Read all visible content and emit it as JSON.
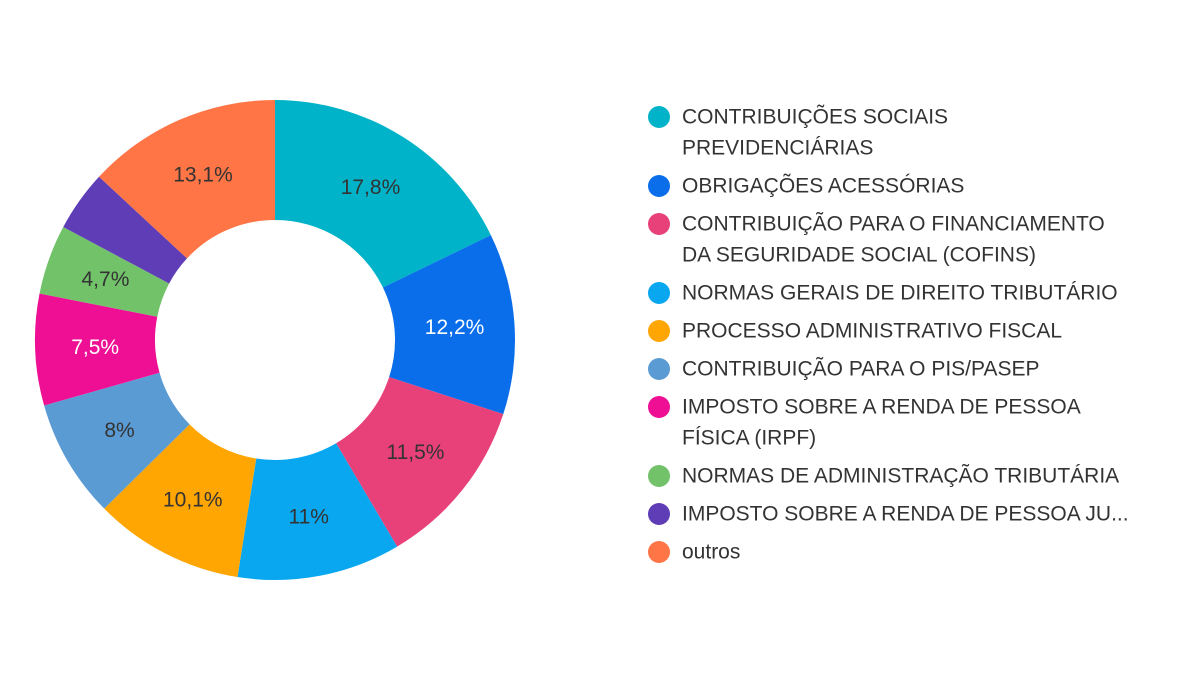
{
  "chart_data": {
    "type": "pie",
    "donut": true,
    "legend_position": "right",
    "label_format": "percent, comma decimal",
    "categories": [
      "CONTRIBUIÇÕES SOCIAIS PREVIDENCIÁRIAS",
      "OBRIGAÇÕES ACESSÓRIAS",
      "CONTRIBUIÇÃO PARA O FINANCIAMENTO DA SEGURIDADE SOCIAL (COFINS)",
      "NORMAS GERAIS DE DIREITO TRIBUTÁRIO",
      "PROCESSO ADMINISTRATIVO FISCAL",
      "CONTRIBUIÇÃO PARA O PIS/PASEP",
      "IMPOSTO SOBRE A RENDA DE PESSOA FÍSICA (IRPF)",
      "NORMAS DE ADMINISTRAÇÃO TRIBUTÁRIA",
      "IMPOSTO SOBRE A RENDA DE PESSOA JU...",
      "outros"
    ],
    "legend_lines": [
      [
        "CONTRIBUIÇÕES SOCIAIS",
        "PREVIDENCIÁRIAS"
      ],
      [
        "OBRIGAÇÕES ACESSÓRIAS"
      ],
      [
        "CONTRIBUIÇÃO PARA O FINANCIAMENTO",
        "DA SEGURIDADE SOCIAL (COFINS)"
      ],
      [
        "NORMAS GERAIS DE DIREITO TRIBUTÁRIO"
      ],
      [
        "PROCESSO ADMINISTRATIVO FISCAL"
      ],
      [
        "CONTRIBUIÇÃO PARA O PIS/PASEP"
      ],
      [
        "IMPOSTO SOBRE A RENDA DE PESSOA",
        "FÍSICA (IRPF)"
      ],
      [
        "NORMAS DE ADMINISTRAÇÃO TRIBUTÁRIA"
      ],
      [
        "IMPOSTO SOBRE A RENDA DE PESSOA JU..."
      ],
      [
        "outros"
      ]
    ],
    "values": [
      17.8,
      12.2,
      11.5,
      11.0,
      10.1,
      8.0,
      7.5,
      4.7,
      4.1,
      13.1
    ],
    "data_labels": [
      "17,8%",
      "12,2%",
      "11,5%",
      "11%",
      "10,1%",
      "8%",
      "7,5%",
      "4,7%",
      "",
      "13,1%"
    ],
    "colors": [
      "#00B3C8",
      "#0A6EEB",
      "#E8417A",
      "#08A7F0",
      "#FFA603",
      "#5B9BD4",
      "#EE0F94",
      "#72C26A",
      "#5E3DB6",
      "#FF7546"
    ],
    "label_colors": [
      "#333333",
      "#ffffff",
      "#333333",
      "#333333",
      "#333333",
      "#333333",
      "#ffffff",
      "#333333",
      "#ffffff",
      "#333333"
    ]
  }
}
